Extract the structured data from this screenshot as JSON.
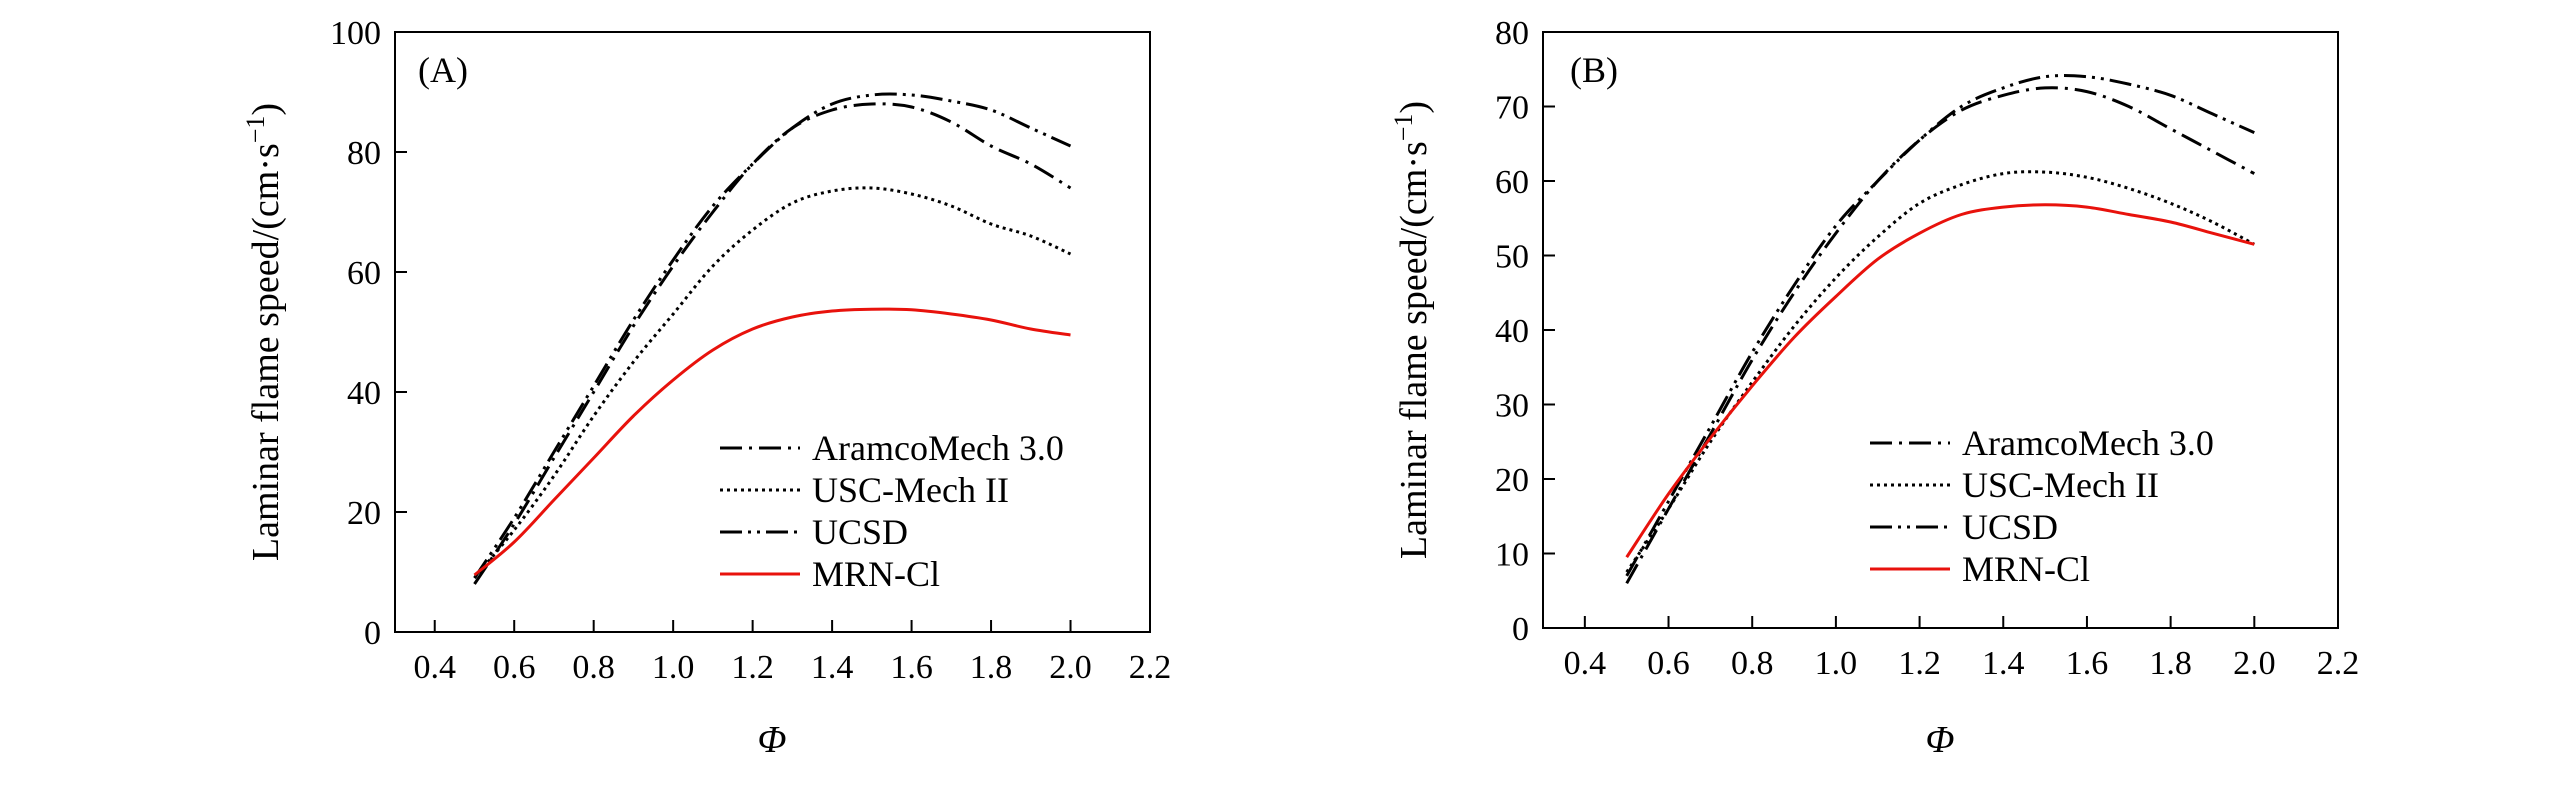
{
  "chart_data": [
    {
      "type": "line",
      "panel_label": "(A)",
      "title": "",
      "xlabel": "Φ",
      "ylabel": "Laminar flame speed/(cm·s",
      "ylabel_sup": "−1",
      "ylabel_close": ")",
      "xlim": [
        0.3,
        2.2
      ],
      "ylim": [
        0,
        100
      ],
      "xticks": [
        0.4,
        0.6,
        0.8,
        1.0,
        1.2,
        1.4,
        1.6,
        1.8,
        2.0,
        2.2
      ],
      "xtick_labels": [
        "0.4",
        "0.6",
        "0.8",
        "1.0",
        "1.2",
        "1.4",
        "1.6",
        "1.8",
        "2.0",
        "2.2"
      ],
      "yticks": [
        0,
        20,
        40,
        60,
        80,
        100
      ],
      "ytick_labels": [
        "0",
        "20",
        "40",
        "60",
        "80",
        "100"
      ],
      "legend_position": "bottom-right",
      "x": [
        0.5,
        0.6,
        0.7,
        0.8,
        0.9,
        1.0,
        1.1,
        1.2,
        1.3,
        1.4,
        1.5,
        1.6,
        1.7,
        1.8,
        1.9,
        2.0
      ],
      "series": [
        {
          "name": "AramcoMech 3.0",
          "style": "dashdot",
          "color": "#000000",
          "values": [
            8,
            18,
            29,
            40,
            51,
            61,
            70,
            78,
            84,
            87,
            88,
            87.5,
            85,
            81,
            78,
            74
          ]
        },
        {
          "name": "USC-Mech II",
          "style": "dotted",
          "color": "#000000",
          "values": [
            9,
            17,
            26,
            36,
            45,
            53,
            61,
            67,
            71.5,
            73.5,
            74,
            73,
            71,
            68,
            66,
            63
          ]
        },
        {
          "name": "UCSD",
          "style": "dashdotdot",
          "color": "#000000",
          "values": [
            9,
            19,
            30,
            41,
            52,
            62,
            71,
            78,
            84,
            88,
            89.5,
            89.5,
            88.5,
            87,
            84,
            81
          ]
        },
        {
          "name": "MRN-Cl",
          "style": "solid",
          "color": "#e8120c",
          "values": [
            9.5,
            15,
            22,
            29,
            36,
            42,
            47,
            50.5,
            52.5,
            53.5,
            53.8,
            53.7,
            53,
            52,
            50.5,
            49.5
          ]
        }
      ]
    },
    {
      "type": "line",
      "panel_label": "(B)",
      "title": "",
      "xlabel": "Φ",
      "ylabel": "Laminar flame speed/(cm·s",
      "ylabel_sup": "−1",
      "ylabel_close": ")",
      "xlim": [
        0.3,
        2.2
      ],
      "ylim": [
        0,
        80
      ],
      "xticks": [
        0.4,
        0.6,
        0.8,
        1.0,
        1.2,
        1.4,
        1.6,
        1.8,
        2.0,
        2.2
      ],
      "xtick_labels": [
        "0.4",
        "0.6",
        "0.8",
        "1.0",
        "1.2",
        "1.4",
        "1.6",
        "1.8",
        "2.0",
        "2.2"
      ],
      "yticks": [
        0,
        10,
        20,
        30,
        40,
        50,
        60,
        70,
        80
      ],
      "ytick_labels": [
        "0",
        "10",
        "20",
        "30",
        "40",
        "50",
        "60",
        "70",
        "80"
      ],
      "legend_position": "bottom-right",
      "x": [
        0.5,
        0.6,
        0.7,
        0.8,
        0.9,
        1.0,
        1.1,
        1.2,
        1.3,
        1.4,
        1.5,
        1.6,
        1.7,
        1.8,
        1.9,
        2.0
      ],
      "series": [
        {
          "name": "AramcoMech 3.0",
          "style": "dashdot",
          "color": "#000000",
          "values": [
            6,
            16,
            26,
            36,
            45,
            53,
            60,
            65.5,
            69.5,
            71.5,
            72.5,
            72,
            70,
            67,
            64,
            61
          ]
        },
        {
          "name": "USC-Mech II",
          "style": "dotted",
          "color": "#000000",
          "values": [
            7.5,
            16,
            25,
            33,
            40.5,
            47,
            52.5,
            57,
            59.5,
            61,
            61.2,
            60.5,
            59,
            57,
            54.5,
            51.5
          ]
        },
        {
          "name": "UCSD",
          "style": "dashdotdot",
          "color": "#000000",
          "values": [
            7,
            17,
            27,
            37,
            46,
            54,
            60,
            65.5,
            70,
            72.5,
            74,
            74,
            73,
            71.5,
            69,
            66.5
          ]
        },
        {
          "name": "MRN-Cl",
          "style": "solid",
          "color": "#e8120c",
          "values": [
            9.5,
            18,
            25.5,
            32.5,
            39,
            44.5,
            49.5,
            53,
            55.5,
            56.5,
            56.8,
            56.5,
            55.5,
            54.5,
            53,
            51.5
          ]
        }
      ]
    }
  ]
}
